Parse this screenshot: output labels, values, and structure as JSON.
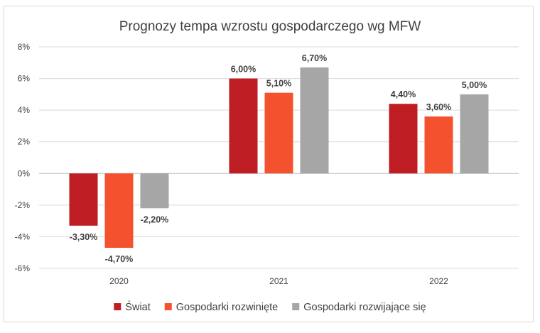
{
  "chart_data": {
    "type": "bar",
    "title": "Prognozy tempa wzrostu gospodarczego wg MFW",
    "xlabel": "",
    "ylabel": "",
    "categories": [
      "2020",
      "2021",
      "2022"
    ],
    "ylim": [
      -6,
      8
    ],
    "yticks": [
      -6,
      -4,
      -2,
      0,
      2,
      4,
      6,
      8
    ],
    "ytick_labels": [
      "-6%",
      "-4%",
      "-2%",
      "0%",
      "2%",
      "4%",
      "6%",
      "8%"
    ],
    "grid": true,
    "legend_position": "bottom",
    "series": [
      {
        "name": "Świat",
        "color": "#be1e23",
        "values": [
          -3.3,
          6.0,
          4.4
        ],
        "labels": [
          "-3,30%",
          "6,00%",
          "4,40%"
        ]
      },
      {
        "name": "Gospodarki rozwinięte",
        "color": "#f4522e",
        "values": [
          -4.7,
          5.1,
          3.6
        ],
        "labels": [
          "-4,70%",
          "5,10%",
          "3,60%"
        ]
      },
      {
        "name": "Gospodarki rozwijające się",
        "color": "#a6a6a6",
        "values": [
          -2.2,
          6.7,
          5.0
        ],
        "labels": [
          "-2,20%",
          "6,70%",
          "5,00%"
        ]
      }
    ]
  }
}
